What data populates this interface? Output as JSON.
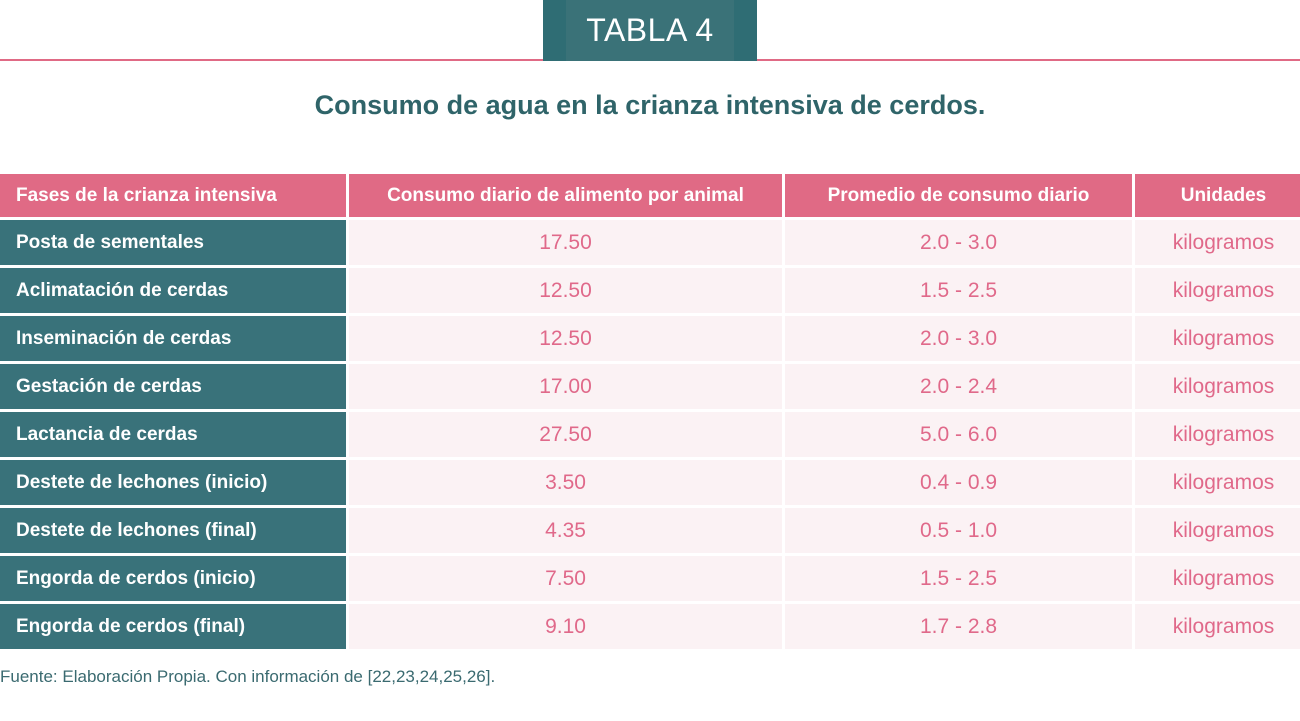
{
  "tag": "TABLA 4",
  "title": "Consumo de agua en la crianza intensiva de cerdos.",
  "headers": [
    "Fases de la crianza intensiva",
    "Consumo diario de alimento por animal",
    "Promedio de consumo diario",
    "Unidades"
  ],
  "rows": [
    {
      "phase": "Posta de sementales",
      "food": "17.50",
      "avg": "2.0 - 3.0",
      "unit": "kilogramos"
    },
    {
      "phase": "Aclimatación de cerdas",
      "food": "12.50",
      "avg": "1.5 - 2.5",
      "unit": "kilogramos"
    },
    {
      "phase": "Inseminación de cerdas",
      "food": "12.50",
      "avg": "2.0 - 3.0",
      "unit": "kilogramos"
    },
    {
      "phase": "Gestación de cerdas",
      "food": "17.00",
      "avg": "2.0 - 2.4",
      "unit": "kilogramos"
    },
    {
      "phase": "Lactancia de cerdas",
      "food": "27.50",
      "avg": "5.0 - 6.0",
      "unit": "kilogramos"
    },
    {
      "phase": "Destete de lechones (inicio)",
      "food": "3.50",
      "avg": "0.4 - 0.9",
      "unit": "kilogramos"
    },
    {
      "phase": "Destete de lechones (final)",
      "food": "4.35",
      "avg": "0.5 - 1.0",
      "unit": "kilogramos"
    },
    {
      "phase": "Engorda de cerdos (inicio)",
      "food": "7.50",
      "avg": "1.5 - 2.5",
      "unit": "kilogramos"
    },
    {
      "phase": "Engorda de cerdos (final)",
      "food": "9.10",
      "avg": "1.7 - 2.8",
      "unit": "kilogramos"
    }
  ],
  "source": "Fuente: Elaboración Propia. Con información de [22,23,24,25,26].",
  "colors": {
    "teal": "#39727a",
    "pink": "#e06a85",
    "light_pink": "#fbf2f4"
  }
}
